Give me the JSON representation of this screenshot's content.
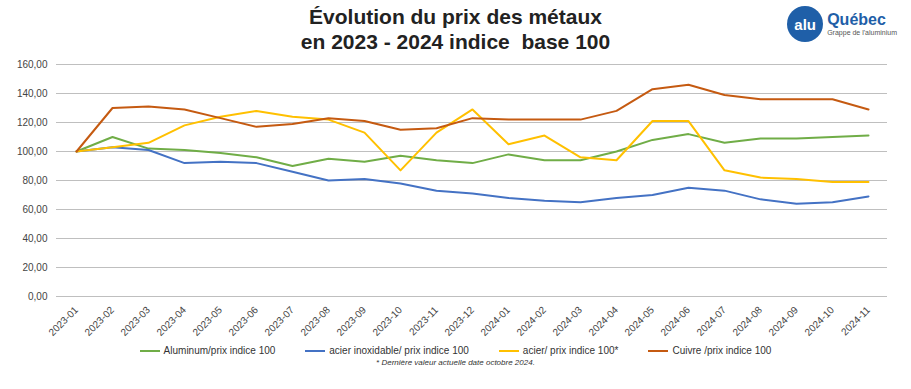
{
  "chart_data": {
    "type": "line",
    "title": [
      "Évolution du prix des métaux",
      "en 2023 - 2024 indice  base 100"
    ],
    "logo": {
      "text": "alu",
      "name": "Québec",
      "tagline": "Grappe de l'aluminium"
    },
    "note": "* Dernière valeur actuelle date octobre 2024.",
    "categories": [
      "2023-01",
      "2023-02",
      "2023-03",
      "2023-04",
      "2023-05",
      "2023-06",
      "2023-07",
      "2023-08",
      "2023-09",
      "2023-10",
      "2023-11",
      "2023-12",
      "2024-01",
      "2024-02",
      "2024-03",
      "2024-04",
      "2024-05",
      "2024-06",
      "2024-07",
      "2024-08",
      "2024-09",
      "2024-10",
      "2024-11"
    ],
    "series": [
      {
        "name": "Aluminum/prix indice 100",
        "color": "#70ad47",
        "values": [
          100,
          110,
          102,
          101,
          99,
          96,
          90,
          95,
          93,
          97,
          94,
          92,
          98,
          94,
          94,
          100,
          108,
          112,
          106,
          109,
          109,
          110,
          111
        ]
      },
      {
        "name": "acier inoxidable/ prix indice 100",
        "color": "#4472c4",
        "values": [
          100,
          103,
          101,
          92,
          93,
          92,
          86,
          80,
          81,
          78,
          73,
          71,
          68,
          66,
          65,
          68,
          70,
          75,
          73,
          67,
          64,
          65,
          69
        ]
      },
      {
        "name": "acier/ prix indice 100*",
        "color": "#ffc000",
        "values": [
          100,
          103,
          106,
          118,
          124,
          128,
          124,
          122,
          113,
          87,
          113,
          129,
          105,
          111,
          96,
          94,
          121,
          121,
          87,
          82,
          81,
          79,
          79
        ]
      },
      {
        "name": "Cuivre /prix indice 100",
        "color": "#c55a11",
        "values": [
          100,
          130,
          131,
          129,
          123,
          117,
          119,
          123,
          121,
          115,
          116,
          123,
          122,
          122,
          122,
          128,
          143,
          146,
          139,
          136,
          136,
          136,
          129
        ]
      }
    ],
    "ylim": [
      0,
      160
    ],
    "yticks": [
      {
        "value": 0,
        "label": "0,00"
      },
      {
        "value": 20,
        "label": "20,00"
      },
      {
        "value": 40,
        "label": "40,00"
      },
      {
        "value": 60,
        "label": "60,00"
      },
      {
        "value": 80,
        "label": "80,00"
      },
      {
        "value": 100,
        "label": "100,00"
      },
      {
        "value": 120,
        "label": "120,00"
      },
      {
        "value": 140,
        "label": "140,00"
      },
      {
        "value": 160,
        "label": "160,00"
      }
    ],
    "grid": true,
    "legend": "bottom"
  }
}
